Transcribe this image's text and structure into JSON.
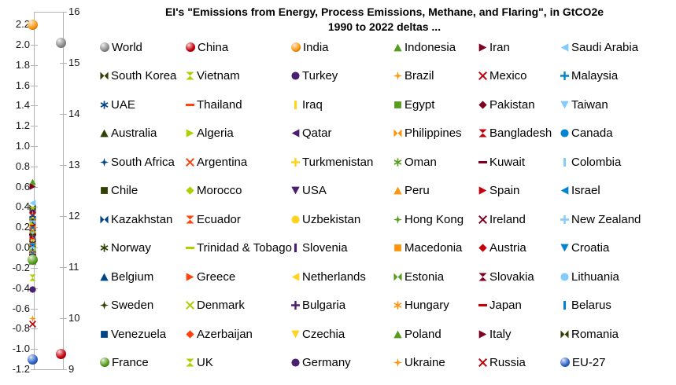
{
  "title": {
    "line1": "EI's \"Emissions from Energy, Process Emissions, Methane, and Flaring\", in GtCO2e",
    "line2": "1990 to 2022 deltas ..."
  },
  "chart_data": {
    "type": "scatter",
    "title": "EI's \"Emissions from Energy, Process Emissions, Methane, and Flaring\", in GtCO2e 1990 to 2022 deltas ...",
    "unit": "GtCO2e",
    "grid": false,
    "legend_position": "right-grid-6-columns",
    "left_axis": {
      "min": -1.2,
      "max": 2.2,
      "step": 0.2,
      "ticks": [
        "2.2",
        "2.0",
        "1.8",
        "1.6",
        "1.4",
        "1.2",
        "1.0",
        "0.8",
        "0.6",
        "0.4",
        "0.2",
        "0.0",
        "-0.2",
        "-0.4",
        "-0.6",
        "-0.8",
        "-1.0",
        "-1.2"
      ]
    },
    "right_axis": {
      "min": 9,
      "max": 16,
      "step": 1,
      "ticks": [
        "16",
        "15",
        "14",
        "13",
        "12",
        "11",
        "10",
        "9"
      ]
    },
    "series": [
      {
        "name": "World",
        "value": 15.4,
        "axis": "right",
        "marker": "sphere",
        "color": "#8c8c8c"
      },
      {
        "name": "China",
        "value": 9.3,
        "axis": "right",
        "marker": "sphere",
        "color": "#c5000b"
      },
      {
        "name": "India",
        "value": 2.2,
        "axis": "left",
        "marker": "sphere",
        "color": "#ff950e"
      },
      {
        "name": "Indonesia",
        "value": 0.68,
        "axis": "left",
        "marker": "tri-up",
        "color": "#579d1c"
      },
      {
        "name": "Iran",
        "value": 0.63,
        "axis": "left",
        "marker": "tri-right",
        "color": "#7e0021"
      },
      {
        "name": "Saudi Arabia",
        "value": 0.47,
        "axis": "left",
        "marker": "tri-left",
        "color": "#83caff"
      },
      {
        "name": "South Korea",
        "value": 0.42,
        "axis": "left",
        "marker": "bowtie",
        "color": "#314004"
      },
      {
        "name": "Vietnam",
        "value": 0.4,
        "axis": "left",
        "marker": "hourglass",
        "color": "#aecf00"
      },
      {
        "name": "Turkey",
        "value": 0.38,
        "axis": "left",
        "marker": "circle",
        "color": "#4b1f6f"
      },
      {
        "name": "Brazil",
        "value": 0.36,
        "axis": "left",
        "marker": "star",
        "color": "#ff950e"
      },
      {
        "name": "Mexico",
        "value": 0.35,
        "axis": "left",
        "marker": "x",
        "color": "#c5000b"
      },
      {
        "name": "Malaysia",
        "value": 0.33,
        "axis": "left",
        "marker": "plus",
        "color": "#0084d1"
      },
      {
        "name": "UAE",
        "value": 0.32,
        "axis": "left",
        "marker": "asterisk",
        "color": "#004586"
      },
      {
        "name": "Thailand",
        "value": 0.31,
        "axis": "left",
        "marker": "hbar",
        "color": "#ff420e"
      },
      {
        "name": "Iraq",
        "value": 0.3,
        "axis": "left",
        "marker": "vbar",
        "color": "#ffd320"
      },
      {
        "name": "Egypt",
        "value": 0.29,
        "axis": "left",
        "marker": "square",
        "color": "#579d1c"
      },
      {
        "name": "Pakistan",
        "value": 0.28,
        "axis": "left",
        "marker": "diamond",
        "color": "#7e0021"
      },
      {
        "name": "Taiwan",
        "value": 0.27,
        "axis": "left",
        "marker": "tri-down",
        "color": "#83caff"
      },
      {
        "name": "Australia",
        "value": 0.26,
        "axis": "left",
        "marker": "tri-up",
        "color": "#314004"
      },
      {
        "name": "Algeria",
        "value": 0.25,
        "axis": "left",
        "marker": "tri-right",
        "color": "#aecf00"
      },
      {
        "name": "Qatar",
        "value": 0.24,
        "axis": "left",
        "marker": "tri-left",
        "color": "#4b1f6f"
      },
      {
        "name": "Philippines",
        "value": 0.23,
        "axis": "left",
        "marker": "bowtie",
        "color": "#ff950e"
      },
      {
        "name": "Bangladesh",
        "value": 0.22,
        "axis": "left",
        "marker": "hourglass",
        "color": "#c5000b"
      },
      {
        "name": "Canada",
        "value": 0.21,
        "axis": "left",
        "marker": "circle",
        "color": "#0084d1"
      },
      {
        "name": "South Africa",
        "value": 0.2,
        "axis": "left",
        "marker": "star",
        "color": "#004586"
      },
      {
        "name": "Argentina",
        "value": 0.19,
        "axis": "left",
        "marker": "x",
        "color": "#ff420e"
      },
      {
        "name": "Turkmenistan",
        "value": 0.18,
        "axis": "left",
        "marker": "plus",
        "color": "#ffd320"
      },
      {
        "name": "Oman",
        "value": 0.17,
        "axis": "left",
        "marker": "asterisk",
        "color": "#579d1c"
      },
      {
        "name": "Kuwait",
        "value": 0.16,
        "axis": "left",
        "marker": "hbar",
        "color": "#7e0021"
      },
      {
        "name": "Colombia",
        "value": 0.15,
        "axis": "left",
        "marker": "vbar",
        "color": "#83caff"
      },
      {
        "name": "Chile",
        "value": 0.14,
        "axis": "left",
        "marker": "square",
        "color": "#314004"
      },
      {
        "name": "Morocco",
        "value": 0.13,
        "axis": "left",
        "marker": "diamond",
        "color": "#aecf00"
      },
      {
        "name": "USA",
        "value": 0.12,
        "axis": "left",
        "marker": "tri-down",
        "color": "#4b1f6f"
      },
      {
        "name": "Peru",
        "value": 0.11,
        "axis": "left",
        "marker": "tri-up",
        "color": "#ff950e"
      },
      {
        "name": "Spain",
        "value": 0.11,
        "axis": "left",
        "marker": "tri-right",
        "color": "#c5000b"
      },
      {
        "name": "Israel",
        "value": 0.1,
        "axis": "left",
        "marker": "tri-left",
        "color": "#0084d1"
      },
      {
        "name": "Kazakhstan",
        "value": 0.09,
        "axis": "left",
        "marker": "bowtie",
        "color": "#004586"
      },
      {
        "name": "Ecuador",
        "value": 0.09,
        "axis": "left",
        "marker": "hourglass",
        "color": "#ff420e"
      },
      {
        "name": "Uzbekistan",
        "value": 0.08,
        "axis": "left",
        "marker": "circle",
        "color": "#ffd320"
      },
      {
        "name": "Hong Kong",
        "value": 0.08,
        "axis": "left",
        "marker": "star",
        "color": "#579d1c"
      },
      {
        "name": "Ireland",
        "value": 0.07,
        "axis": "left",
        "marker": "x",
        "color": "#7e0021"
      },
      {
        "name": "New Zealand",
        "value": 0.07,
        "axis": "left",
        "marker": "plus",
        "color": "#83caff"
      },
      {
        "name": "Norway",
        "value": 0.06,
        "axis": "left",
        "marker": "asterisk",
        "color": "#314004"
      },
      {
        "name": "Trinidad & Tobago",
        "value": 0.06,
        "axis": "left",
        "marker": "hbar",
        "color": "#aecf00"
      },
      {
        "name": "Slovenia",
        "value": 0.05,
        "axis": "left",
        "marker": "vbar",
        "color": "#4b1f6f"
      },
      {
        "name": "Macedonia",
        "value": 0.05,
        "axis": "left",
        "marker": "square",
        "color": "#ff950e"
      },
      {
        "name": "Austria",
        "value": 0.04,
        "axis": "left",
        "marker": "diamond",
        "color": "#c5000b"
      },
      {
        "name": "Croatia",
        "value": 0.04,
        "axis": "left",
        "marker": "tri-down",
        "color": "#0084d1"
      },
      {
        "name": "Belgium",
        "value": 0.03,
        "axis": "left",
        "marker": "tri-up",
        "color": "#004586"
      },
      {
        "name": "Greece",
        "value": 0.03,
        "axis": "left",
        "marker": "tri-right",
        "color": "#ff420e"
      },
      {
        "name": "Netherlands",
        "value": 0.02,
        "axis": "left",
        "marker": "tri-left",
        "color": "#ffd320"
      },
      {
        "name": "Estonia",
        "value": 0.02,
        "axis": "left",
        "marker": "bowtie",
        "color": "#579d1c"
      },
      {
        "name": "Slovakia",
        "value": 0.01,
        "axis": "left",
        "marker": "hourglass",
        "color": "#7e0021"
      },
      {
        "name": "Lithuania",
        "value": 0.01,
        "axis": "left",
        "marker": "circle",
        "color": "#83caff"
      },
      {
        "name": "Sweden",
        "value": 0.0,
        "axis": "left",
        "marker": "star",
        "color": "#314004"
      },
      {
        "name": "Denmark",
        "value": -0.01,
        "axis": "left",
        "marker": "x",
        "color": "#aecf00"
      },
      {
        "name": "Bulgaria",
        "value": -0.02,
        "axis": "left",
        "marker": "plus",
        "color": "#4b1f6f"
      },
      {
        "name": "Hungary",
        "value": -0.03,
        "axis": "left",
        "marker": "asterisk",
        "color": "#ff950e"
      },
      {
        "name": "Japan",
        "value": -0.04,
        "axis": "left",
        "marker": "hbar",
        "color": "#c5000b"
      },
      {
        "name": "Belarus",
        "value": -0.05,
        "axis": "left",
        "marker": "vbar",
        "color": "#0084d1"
      },
      {
        "name": "Venezuela",
        "value": -0.06,
        "axis": "left",
        "marker": "square",
        "color": "#004586"
      },
      {
        "name": "Azerbaijan",
        "value": -0.07,
        "axis": "left",
        "marker": "diamond",
        "color": "#ff420e"
      },
      {
        "name": "Czechia",
        "value": -0.08,
        "axis": "left",
        "marker": "tri-down",
        "color": "#ffd320"
      },
      {
        "name": "Poland",
        "value": -0.09,
        "axis": "left",
        "marker": "tri-up",
        "color": "#579d1c"
      },
      {
        "name": "Italy",
        "value": -0.1,
        "axis": "left",
        "marker": "tri-right",
        "color": "#7e0021"
      },
      {
        "name": "Romania",
        "value": -0.11,
        "axis": "left",
        "marker": "bowtie",
        "color": "#314004"
      },
      {
        "name": "France",
        "value": -0.12,
        "axis": "left",
        "marker": "sphere",
        "color": "#579d1c"
      },
      {
        "name": "UK",
        "value": -0.27,
        "axis": "left",
        "marker": "hourglass",
        "color": "#aecf00"
      },
      {
        "name": "Germany",
        "value": -0.38,
        "axis": "left",
        "marker": "circle",
        "color": "#4b1f6f"
      },
      {
        "name": "Ukraine",
        "value": -0.67,
        "axis": "left",
        "marker": "star",
        "color": "#ff950e"
      },
      {
        "name": "Russia",
        "value": -0.72,
        "axis": "left",
        "marker": "x",
        "color": "#c5000b"
      },
      {
        "name": "EU-27",
        "value": -1.1,
        "axis": "left",
        "marker": "sphere",
        "color": "#2d64c8"
      }
    ]
  }
}
